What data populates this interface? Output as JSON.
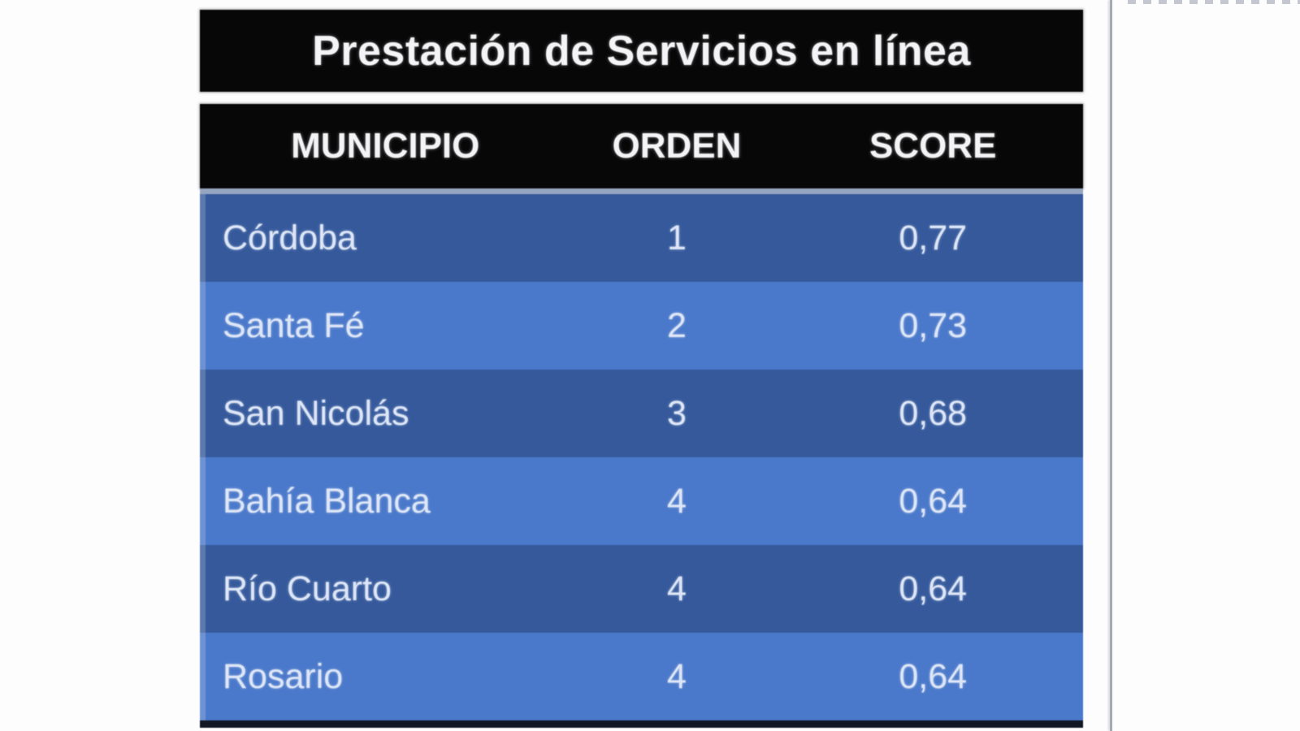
{
  "table": {
    "title": "Prestación de Servicios en línea",
    "columns": [
      "MUNICIPIO",
      "ORDEN",
      "SCORE"
    ],
    "rows": [
      {
        "municipio": "Córdoba",
        "orden": "1",
        "score": "0,77"
      },
      {
        "municipio": "Santa Fé",
        "orden": "2",
        "score": "0,73"
      },
      {
        "municipio": "San Nicolás",
        "orden": "3",
        "score": "0,68"
      },
      {
        "municipio": "Bahía Blanca",
        "orden": "4",
        "score": "0,64"
      },
      {
        "municipio": "Río Cuarto",
        "orden": "4",
        "score": "0,64"
      },
      {
        "municipio": "Rosario",
        "orden": "4",
        "score": "0,64"
      }
    ]
  },
  "chart_data": {
    "type": "table",
    "title": "Prestación de Servicios en línea",
    "columns": [
      "MUNICIPIO",
      "ORDEN",
      "SCORE"
    ],
    "rows": [
      [
        "Córdoba",
        1,
        0.77
      ],
      [
        "Santa Fé",
        2,
        0.73
      ],
      [
        "San Nicolás",
        3,
        0.68
      ],
      [
        "Bahía Blanca",
        4,
        0.64
      ],
      [
        "Río Cuarto",
        4,
        0.64
      ],
      [
        "Rosario",
        4,
        0.64
      ]
    ],
    "score_display_format": "comma-decimal",
    "layout": "black title band, black column-header band, alternating dark/light blue data rows"
  },
  "colors": {
    "band_background": "#070708",
    "row_dark": "#35599b",
    "row_light": "#4a78ca",
    "cell_text": "#dde6f6",
    "header_text": "#f4f4f6",
    "body_top_strip": "#97a6c0",
    "body_bottom_border": "#111723",
    "divider_line": "#a6a8b3",
    "page_background": "#fdfdfe"
  }
}
